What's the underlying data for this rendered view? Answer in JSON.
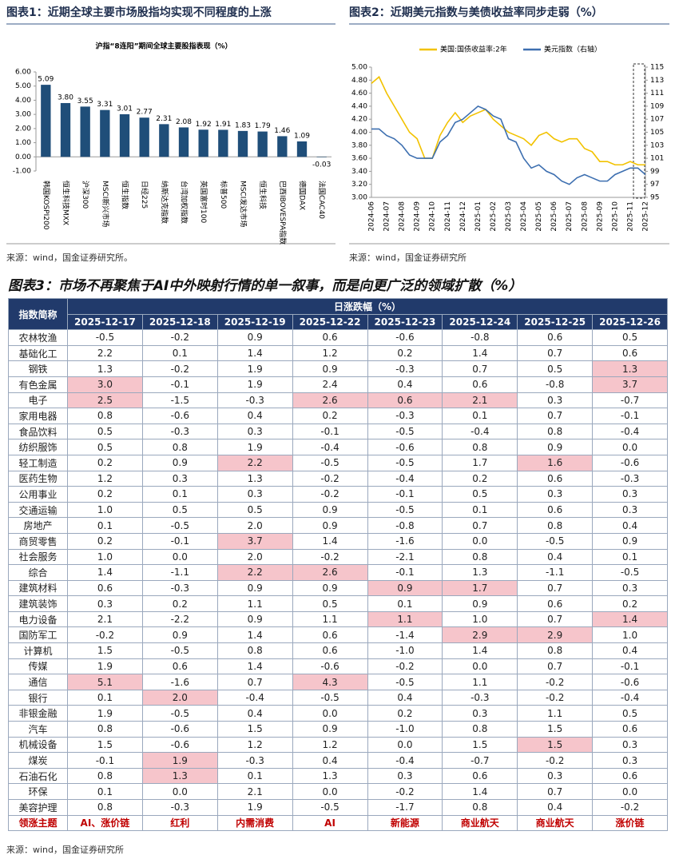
{
  "chart_data": [
    {
      "type": "bar",
      "title": "图表1：近期全球主要市场股指均实现不同程度的上涨",
      "subtitle": "沪指“8连阳”期间全球主要股指表现（%）",
      "categories": [
        "韩国KOSPI200",
        "恒生科技MXX",
        "沪深300",
        "MSCI新兴市场",
        "恒生指数",
        "日经225",
        "纳斯达克指数",
        "台湾加权指数",
        "英国富时100",
        "标普500",
        "MSCI发达市场",
        "恒生科技",
        "巴西IBOVESPA指数",
        "德国DAX",
        "法国CAC40"
      ],
      "values": [
        5.09,
        3.8,
        3.55,
        3.31,
        3.01,
        2.77,
        2.31,
        2.08,
        1.92,
        1.91,
        1.83,
        1.79,
        1.46,
        1.09,
        -0.03
      ],
      "value_labels": [
        "5.09",
        "3.80",
        "3.55",
        "3.31",
        "3.01",
        "2.77",
        "2.31",
        "2.08",
        "1.92",
        "1.91",
        "1.83",
        "1.79",
        "1.46",
        "1.09",
        "-0.03"
      ],
      "color": "#1f4e79",
      "ylim": [
        -1,
        6
      ],
      "yticks": [
        {
          "value": -1,
          "label": "-1.00"
        },
        {
          "value": 0,
          "label": "0.00"
        },
        {
          "value": 1,
          "label": "1.00"
        },
        {
          "value": 2,
          "label": "2.00"
        },
        {
          "value": 3,
          "label": "3.00"
        },
        {
          "value": 4,
          "label": "4.00"
        },
        {
          "value": 5,
          "label": "5.00"
        },
        {
          "value": 6,
          "label": "6.00"
        }
      ]
    },
    {
      "type": "line",
      "title": "图表2：近期美元指数与美债收益率同步走弱（%）",
      "categories": [
        "2024-06",
        null,
        "2024-07",
        null,
        "2024-08",
        null,
        "2024-09",
        null,
        "2024-10",
        null,
        "2024-11",
        null,
        "2024-12",
        null,
        "2025-01",
        null,
        "2025-02",
        null,
        "2025-03",
        null,
        "2025-04",
        null,
        "2025-05",
        null,
        "2025-06",
        null,
        "2025-07",
        null,
        "2025-08",
        null,
        "2025-09",
        null,
        "2025-10",
        null,
        "2025-11",
        null,
        "2025-12"
      ],
      "series": [
        {
          "name": "美国:国债收益率:2年",
          "color": "#f2c200",
          "values": [
            4.75,
            4.85,
            4.6,
            4.4,
            4.2,
            4.0,
            3.9,
            3.6,
            3.6,
            3.95,
            4.15,
            4.3,
            4.15,
            4.25,
            4.3,
            4.35,
            4.2,
            4.1,
            4.0,
            3.95,
            3.9,
            3.8,
            3.95,
            4.0,
            3.9,
            3.85,
            3.9,
            3.9,
            3.75,
            3.7,
            3.55,
            3.55,
            3.5,
            3.5,
            3.55,
            3.5,
            3.5
          ]
        },
        {
          "name": "美元指数（右轴）",
          "color": "#3d6fb0",
          "axis": "y2",
          "values": [
            105.5,
            105.5,
            104.5,
            104,
            103,
            101.5,
            101,
            101,
            101,
            103.5,
            104.5,
            106.5,
            107,
            108,
            109,
            108.5,
            107.5,
            107,
            104,
            103.5,
            101,
            99.5,
            100,
            99,
            98.5,
            97.5,
            97,
            98,
            98.5,
            98,
            97.5,
            97.5,
            98.5,
            99,
            99.5,
            99.5,
            98.5
          ]
        }
      ],
      "ylim": [
        3,
        5
      ],
      "yticks": [
        {
          "value": 3,
          "label": "3.00"
        },
        {
          "value": 3.2,
          "label": "3.20"
        },
        {
          "value": 3.4,
          "label": "3.40"
        },
        {
          "value": 3.6,
          "label": "3.60"
        },
        {
          "value": 3.8,
          "label": "3.80"
        },
        {
          "value": 4,
          "label": "4.00"
        },
        {
          "value": 4.2,
          "label": "4.20"
        },
        {
          "value": 4.4,
          "label": "4.40"
        },
        {
          "value": 4.6,
          "label": "4.60"
        },
        {
          "value": 4.8,
          "label": "4.80"
        },
        {
          "value": 5,
          "label": "5.00"
        }
      ],
      "y2lim": [
        95,
        115
      ],
      "y2ticks": [
        95,
        97,
        99,
        101,
        103,
        105,
        107,
        109,
        111,
        113,
        115
      ],
      "legend": "top"
    }
  ],
  "sources": [
    "来源：wind，国金证券研究所。",
    "来源：wind，国金证券研究所",
    "来源：wind，国金证券研究所"
  ],
  "table": {
    "title": "图表3：市场不再聚焦于AI中外映射行情的单一叙事，而是向更广泛的领域扩散（%）",
    "corner": "指数简称",
    "group": "日涨跌幅（%）",
    "dates": [
      "2025-12-17",
      "2025-12-18",
      "2025-12-19",
      "2025-12-22",
      "2025-12-23",
      "2025-12-24",
      "2025-12-25",
      "2025-12-26"
    ],
    "rows": [
      {
        "name": "农林牧渔",
        "values": [
          "-0.5",
          "-0.2",
          "0.9",
          "0.6",
          "-0.6",
          "-0.8",
          "0.6",
          "0.5"
        ],
        "highlight": []
      },
      {
        "name": "基础化工",
        "values": [
          "2.2",
          "0.1",
          "1.4",
          "1.2",
          "0.2",
          "1.4",
          "0.7",
          "0.6"
        ],
        "highlight": []
      },
      {
        "name": "钢铁",
        "values": [
          "1.3",
          "-0.2",
          "1.9",
          "0.9",
          "-0.3",
          "0.7",
          "0.5",
          "1.3"
        ],
        "highlight": [
          7
        ]
      },
      {
        "name": "有色金属",
        "values": [
          "3.0",
          "-0.1",
          "1.9",
          "2.4",
          "0.4",
          "0.6",
          "-0.8",
          "3.7"
        ],
        "highlight": [
          0,
          7
        ]
      },
      {
        "name": "电子",
        "values": [
          "2.5",
          "-1.5",
          "-0.3",
          "2.6",
          "0.6",
          "2.1",
          "0.3",
          "-0.7"
        ],
        "highlight": [
          0,
          3,
          4,
          5
        ]
      },
      {
        "name": "家用电器",
        "values": [
          "0.8",
          "-0.6",
          "0.4",
          "0.2",
          "-0.3",
          "0.1",
          "0.7",
          "-0.1"
        ],
        "highlight": []
      },
      {
        "name": "食品饮料",
        "values": [
          "0.5",
          "-0.3",
          "0.3",
          "-0.1",
          "-0.5",
          "-0.4",
          "0.8",
          "-0.4"
        ],
        "highlight": []
      },
      {
        "name": "纺织服饰",
        "values": [
          "0.5",
          "0.8",
          "1.9",
          "-0.4",
          "-0.6",
          "0.8",
          "0.9",
          "0.0"
        ],
        "highlight": []
      },
      {
        "name": "轻工制造",
        "values": [
          "0.2",
          "0.9",
          "2.2",
          "-0.5",
          "-0.5",
          "1.7",
          "1.6",
          "-0.6"
        ],
        "highlight": [
          2,
          6
        ]
      },
      {
        "name": "医药生物",
        "values": [
          "1.2",
          "0.3",
          "1.3",
          "-0.2",
          "-0.4",
          "0.2",
          "0.6",
          "-0.3"
        ],
        "highlight": []
      },
      {
        "name": "公用事业",
        "values": [
          "0.2",
          "0.1",
          "0.3",
          "-0.2",
          "-0.1",
          "0.5",
          "0.3",
          "0.3"
        ],
        "highlight": []
      },
      {
        "name": "交通运输",
        "values": [
          "1.0",
          "0.5",
          "0.5",
          "0.9",
          "-0.5",
          "0.1",
          "0.6",
          "0.3"
        ],
        "highlight": []
      },
      {
        "name": "房地产",
        "values": [
          "0.1",
          "-0.5",
          "2.0",
          "0.9",
          "-0.8",
          "0.7",
          "0.8",
          "0.4"
        ],
        "highlight": []
      },
      {
        "name": "商贸零售",
        "values": [
          "0.2",
          "-0.1",
          "3.7",
          "1.4",
          "-1.6",
          "0.0",
          "-0.5",
          "0.9"
        ],
        "highlight": [
          2
        ]
      },
      {
        "name": "社会服务",
        "values": [
          "1.0",
          "0.0",
          "2.0",
          "-0.2",
          "-2.1",
          "0.8",
          "0.4",
          "0.1"
        ],
        "highlight": []
      },
      {
        "name": "综合",
        "values": [
          "1.4",
          "-1.1",
          "2.2",
          "2.6",
          "-0.1",
          "1.3",
          "-1.1",
          "-0.5"
        ],
        "highlight": [
          2,
          3
        ]
      },
      {
        "name": "建筑材料",
        "values": [
          "0.6",
          "-0.3",
          "0.9",
          "0.9",
          "0.9",
          "1.7",
          "0.7",
          "0.3"
        ],
        "highlight": [
          4,
          5
        ]
      },
      {
        "name": "建筑装饰",
        "values": [
          "0.3",
          "0.2",
          "1.1",
          "0.5",
          "0.1",
          "0.9",
          "0.6",
          "0.2"
        ],
        "highlight": []
      },
      {
        "name": "电力设备",
        "values": [
          "2.1",
          "-2.2",
          "0.9",
          "1.1",
          "1.1",
          "1.0",
          "0.7",
          "1.4"
        ],
        "highlight": [
          4,
          7
        ]
      },
      {
        "name": "国防军工",
        "values": [
          "-0.2",
          "0.9",
          "1.4",
          "0.6",
          "-1.4",
          "2.9",
          "2.9",
          "1.0"
        ],
        "highlight": [
          5,
          6
        ]
      },
      {
        "name": "计算机",
        "values": [
          "1.5",
          "-0.5",
          "0.8",
          "0.6",
          "-1.0",
          "1.4",
          "0.8",
          "0.4"
        ],
        "highlight": []
      },
      {
        "name": "传媒",
        "values": [
          "1.9",
          "0.6",
          "1.4",
          "-0.6",
          "-0.2",
          "0.0",
          "0.7",
          "-0.1"
        ],
        "highlight": []
      },
      {
        "name": "通信",
        "values": [
          "5.1",
          "-1.6",
          "0.7",
          "4.3",
          "-0.5",
          "1.1",
          "-0.2",
          "-0.6"
        ],
        "highlight": [
          0,
          3
        ]
      },
      {
        "name": "银行",
        "values": [
          "0.1",
          "2.0",
          "-0.4",
          "-0.5",
          "0.4",
          "-0.3",
          "-0.2",
          "-0.4"
        ],
        "highlight": [
          1
        ]
      },
      {
        "name": "非银金融",
        "values": [
          "1.9",
          "-0.5",
          "0.4",
          "0.0",
          "0.2",
          "0.3",
          "1.1",
          "0.5"
        ],
        "highlight": []
      },
      {
        "name": "汽车",
        "values": [
          "0.8",
          "-0.6",
          "1.5",
          "0.9",
          "-1.0",
          "0.8",
          "1.5",
          "0.6"
        ],
        "highlight": []
      },
      {
        "name": "机械设备",
        "values": [
          "1.5",
          "-0.6",
          "1.2",
          "1.2",
          "0.0",
          "1.5",
          "1.5",
          "0.3"
        ],
        "highlight": [
          6
        ]
      },
      {
        "name": "煤炭",
        "values": [
          "-0.1",
          "1.9",
          "-0.3",
          "0.4",
          "-0.4",
          "-0.7",
          "-0.2",
          "0.3"
        ],
        "highlight": [
          1
        ]
      },
      {
        "name": "石油石化",
        "values": [
          "0.8",
          "1.3",
          "0.1",
          "1.3",
          "0.3",
          "0.6",
          "0.3",
          "0.6"
        ],
        "highlight": [
          1
        ]
      },
      {
        "name": "环保",
        "values": [
          "0.1",
          "0.0",
          "2.1",
          "0.0",
          "-0.2",
          "1.4",
          "0.7",
          "0.0"
        ],
        "highlight": []
      },
      {
        "name": "美容护理",
        "values": [
          "0.8",
          "-0.3",
          "1.9",
          "-0.5",
          "-1.7",
          "0.8",
          "0.4",
          "-0.2"
        ],
        "highlight": []
      }
    ],
    "footer": {
      "name": "领涨主题",
      "values": [
        "AI、涨价链",
        "红利",
        "内需消费",
        "AI",
        "新能源",
        "商业航天",
        "商业航天",
        "涨价链"
      ]
    }
  }
}
